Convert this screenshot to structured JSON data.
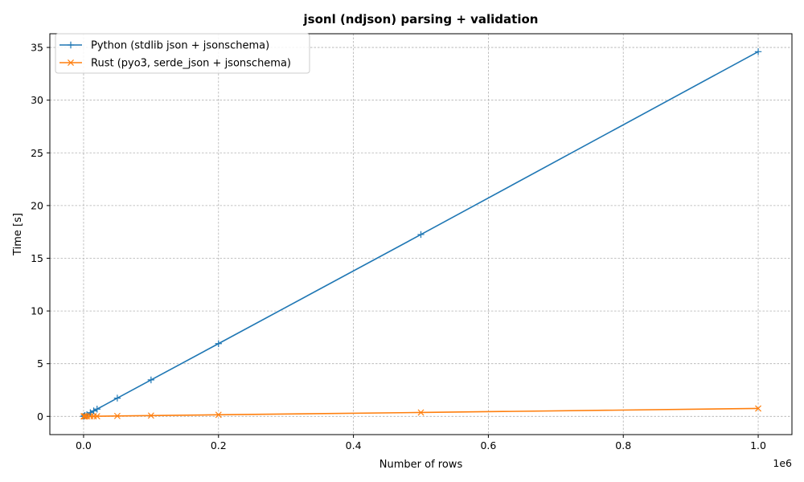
{
  "chart_data": {
    "type": "line",
    "title": "jsonl (ndjson) parsing + validation",
    "xlabel": "Number of rows",
    "ylabel": "Time [s]",
    "x_offset_label": "1e6",
    "xlim": [
      -0.05,
      1.05
    ],
    "ylim": [
      -1.73,
      36.3
    ],
    "x_ticks": [
      0.0,
      0.2,
      0.4,
      0.6,
      0.8,
      1.0
    ],
    "x_tick_labels": [
      "0.0",
      "0.2",
      "0.4",
      "0.6",
      "0.8",
      "1.0"
    ],
    "y_ticks": [
      0,
      5,
      10,
      15,
      20,
      25,
      30,
      35
    ],
    "y_tick_labels": [
      "0",
      "5",
      "10",
      "15",
      "20",
      "25",
      "30",
      "35"
    ],
    "grid": true,
    "legend_position": "upper-left",
    "x": [
      0.0001,
      0.001,
      0.002,
      0.005,
      0.01,
      0.015,
      0.02,
      0.05,
      0.1,
      0.2,
      0.5,
      1.0
    ],
    "series": [
      {
        "name": "Python (stdlib json + jsonschema)",
        "color": "#1f77b4",
        "marker": "plus",
        "values": [
          0.004,
          0.035,
          0.07,
          0.17,
          0.35,
          0.52,
          0.69,
          1.73,
          3.46,
          6.9,
          17.25,
          34.6
        ]
      },
      {
        "name": "Rust (pyo3, serde_json + jsonschema)",
        "color": "#ff7f0e",
        "marker": "x",
        "values": [
          0.0001,
          0.0008,
          0.0015,
          0.004,
          0.008,
          0.011,
          0.015,
          0.037,
          0.075,
          0.15,
          0.37,
          0.75
        ]
      }
    ]
  }
}
